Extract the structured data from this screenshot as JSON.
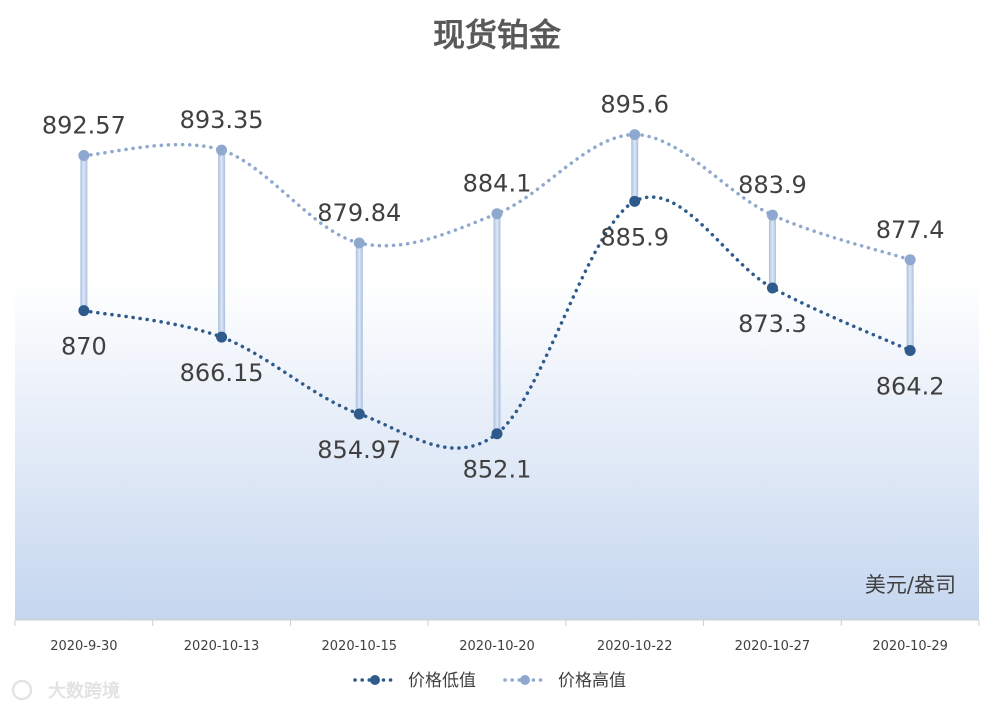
{
  "chart_data": {
    "type": "line",
    "title": "现货铂金",
    "unit_label": "美元/盎司",
    "categories": [
      "2020-9-30",
      "2020-10-13",
      "2020-10-15",
      "2020-10-20",
      "2020-10-22",
      "2020-10-27",
      "2020-10-29"
    ],
    "series": [
      {
        "name": "价格低值",
        "values": [
          870,
          866.15,
          854.97,
          852.1,
          885.9,
          873.3,
          864.2
        ],
        "color": "#2e5a8c"
      },
      {
        "name": "价格高值",
        "values": [
          892.57,
          893.35,
          879.84,
          884.1,
          895.6,
          883.9,
          877.4
        ],
        "color": "#8fa8cf"
      }
    ],
    "labels_low": [
      "870",
      "866.15",
      "854.97",
      "852.1",
      "885.9",
      "873.3",
      "864.2"
    ],
    "labels_high": [
      "892.57",
      "893.35",
      "879.84",
      "884.1",
      "895.6",
      "883.9",
      "877.4"
    ],
    "ylim": [
      825,
      905
    ],
    "legend_position": "bottom",
    "grid": false,
    "watermark": "大数跨境"
  }
}
